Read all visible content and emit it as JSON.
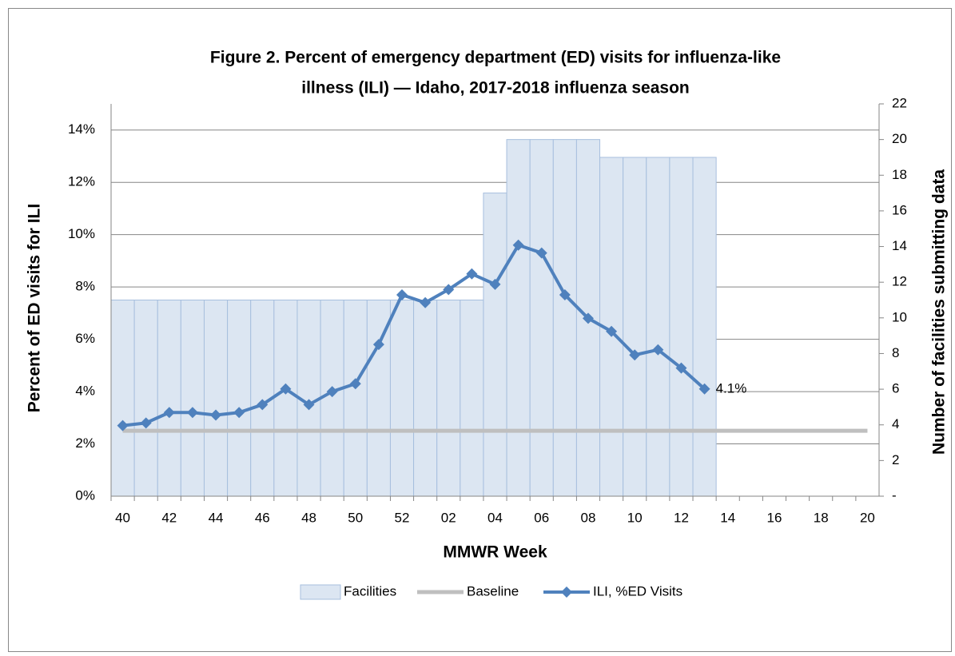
{
  "chart_data": {
    "type": "combo",
    "title_lines": [
      "Figure 2. Percent of emergency department (ED) visits for influenza-like",
      "illness (ILI) — Idaho, 2017-2018 influenza season"
    ],
    "x_label": "MMWR Week",
    "y_label": "Percent of ED visits for ILI",
    "y2_label": "Number of facilities submitting data",
    "categories": [
      "40",
      null,
      "42",
      null,
      "44",
      null,
      "46",
      null,
      "48",
      null,
      "50",
      null,
      "52",
      null,
      "02",
      null,
      "04",
      null,
      "06",
      null,
      "08",
      null,
      "10",
      null,
      "12",
      null,
      "14",
      null,
      "16",
      null,
      "18",
      null,
      "20"
    ],
    "ylim": [
      0,
      15
    ],
    "yticks": [
      {
        "value": 0,
        "label": "0%"
      },
      {
        "value": 2,
        "label": "2%"
      },
      {
        "value": 4,
        "label": "4%"
      },
      {
        "value": 6,
        "label": "6%"
      },
      {
        "value": 8,
        "label": "8%"
      },
      {
        "value": 10,
        "label": "10%"
      },
      {
        "value": 12,
        "label": "12%"
      },
      {
        "value": 14,
        "label": "14%"
      }
    ],
    "y2lim": [
      0,
      22
    ],
    "y2ticks": [
      {
        "value": 0,
        "label": "-"
      },
      2,
      4,
      6,
      8,
      10,
      12,
      14,
      16,
      18,
      20,
      22
    ],
    "grid": true,
    "series": [
      {
        "name": "Facilities",
        "type": "bar",
        "axis": "y2",
        "color": "#dce6f2",
        "edge_color": "#a7bfde",
        "values": [
          11,
          11,
          11,
          11,
          11,
          11,
          11,
          11,
          11,
          11,
          11,
          11,
          11,
          11,
          11,
          11,
          17,
          20,
          20,
          20,
          20,
          19,
          19,
          19,
          19,
          19,
          null,
          null,
          null,
          null,
          null,
          null,
          null
        ]
      },
      {
        "name": "Baseline",
        "type": "line",
        "color": "#bfbfbf",
        "values": [
          2.5,
          2.5,
          2.5,
          2.5,
          2.5,
          2.5,
          2.5,
          2.5,
          2.5,
          2.5,
          2.5,
          2.5,
          2.5,
          2.5,
          2.5,
          2.5,
          2.5,
          2.5,
          2.5,
          2.5,
          2.5,
          2.5,
          2.5,
          2.5,
          2.5,
          2.5,
          2.5,
          2.5,
          2.5,
          2.5,
          2.5,
          2.5,
          2.5
        ]
      },
      {
        "name": "ILI, %ED Visits",
        "type": "line",
        "markers": true,
        "color": "#4f81bd",
        "values": [
          2.7,
          2.8,
          3.2,
          3.2,
          3.1,
          3.2,
          3.5,
          4.1,
          3.5,
          4.0,
          4.3,
          5.8,
          7.7,
          7.4,
          7.9,
          8.5,
          8.1,
          9.6,
          9.3,
          7.7,
          6.8,
          6.3,
          5.4,
          5.6,
          4.9,
          4.1,
          null,
          null,
          null,
          null,
          null,
          null,
          null
        ],
        "value_labels": [
          null,
          null,
          null,
          null,
          null,
          null,
          null,
          null,
          null,
          null,
          null,
          null,
          null,
          null,
          null,
          null,
          null,
          null,
          null,
          null,
          null,
          null,
          null,
          null,
          null,
          "4.1%",
          null,
          null,
          null,
          null,
          null,
          null,
          null
        ]
      }
    ]
  }
}
